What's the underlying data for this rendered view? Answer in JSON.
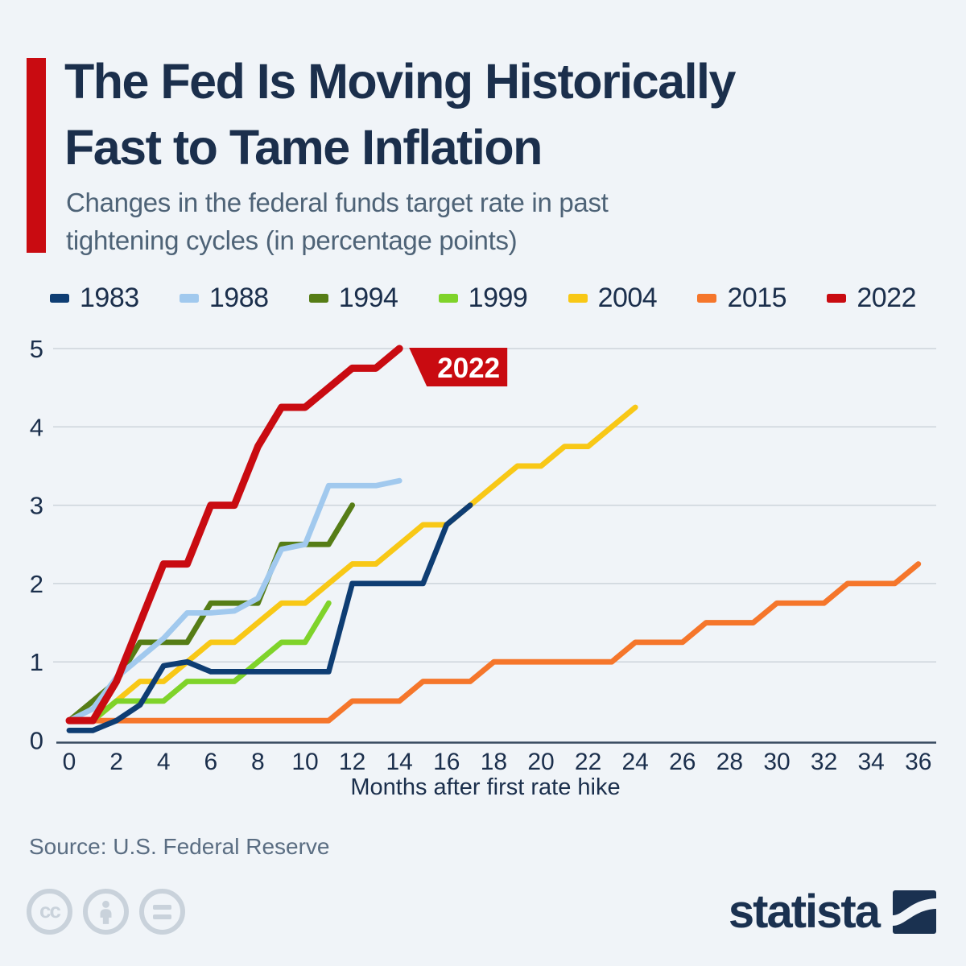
{
  "header": {
    "title": "The Fed Is Moving Historically\nFast to Tame Inflation",
    "subtitle": "Changes in the federal funds target rate in past\ntightening cycles (in percentage points)"
  },
  "chart_data": {
    "type": "line",
    "title": "Changes in the federal funds target rate in past tightening cycles (in percentage points)",
    "xlabel": "Months after first rate hike",
    "ylabel": "",
    "xlim": [
      0,
      36
    ],
    "ylim": [
      0,
      5
    ],
    "x_ticks": [
      0,
      2,
      4,
      6,
      8,
      10,
      12,
      14,
      16,
      18,
      20,
      22,
      24,
      26,
      28,
      30,
      32,
      34,
      36
    ],
    "y_ticks": [
      0,
      1,
      2,
      3,
      4,
      5
    ],
    "grid": "horizontal",
    "legend_position": "top",
    "annotation": {
      "label": "2022",
      "x": 14,
      "y": 5,
      "color": "#c90b11",
      "text_color": "#ffffff"
    },
    "series": [
      {
        "name": "1983",
        "color": "#0e3d73",
        "line_width": 6.8,
        "points": [
          [
            0,
            0.125
          ],
          [
            1,
            0.125
          ],
          [
            2,
            0.25
          ],
          [
            3,
            0.45
          ],
          [
            4,
            0.95
          ],
          [
            5,
            1.0
          ],
          [
            6,
            0.875
          ],
          [
            7,
            0.875
          ],
          [
            8,
            0.875
          ],
          [
            9,
            0.875
          ],
          [
            10,
            0.875
          ],
          [
            11,
            0.875
          ],
          [
            12,
            2.0
          ],
          [
            13,
            2.0
          ],
          [
            14,
            2.0
          ],
          [
            15,
            2.0
          ],
          [
            16,
            2.75
          ],
          [
            17,
            3.0
          ]
        ]
      },
      {
        "name": "1988",
        "color": "#a1c9ee",
        "line_width": 6.8,
        "points": [
          [
            0,
            0.25
          ],
          [
            1,
            0.4
          ],
          [
            2,
            0.8
          ],
          [
            3,
            1.05
          ],
          [
            4,
            1.3
          ],
          [
            5,
            1.625
          ],
          [
            6,
            1.625
          ],
          [
            7,
            1.65
          ],
          [
            8,
            1.8125
          ],
          [
            9,
            2.4375
          ],
          [
            10,
            2.5
          ],
          [
            11,
            3.25
          ],
          [
            12,
            3.25
          ],
          [
            13,
            3.25
          ],
          [
            14,
            3.3125
          ]
        ]
      },
      {
        "name": "1994",
        "color": "#567d16",
        "line_width": 6.8,
        "points": [
          [
            0,
            0.25
          ],
          [
            1,
            0.5
          ],
          [
            2,
            0.75
          ],
          [
            3,
            1.25
          ],
          [
            4,
            1.25
          ],
          [
            5,
            1.25
          ],
          [
            6,
            1.75
          ],
          [
            7,
            1.75
          ],
          [
            8,
            1.75
          ],
          [
            9,
            2.5
          ],
          [
            10,
            2.5
          ],
          [
            11,
            2.5
          ],
          [
            12,
            3.0
          ]
        ]
      },
      {
        "name": "1999",
        "color": "#7fd32a",
        "line_width": 6.8,
        "points": [
          [
            0,
            0.25
          ],
          [
            1,
            0.25
          ],
          [
            2,
            0.5
          ],
          [
            3,
            0.5
          ],
          [
            4,
            0.5
          ],
          [
            5,
            0.75
          ],
          [
            6,
            0.75
          ],
          [
            7,
            0.75
          ],
          [
            8,
            1.0
          ],
          [
            9,
            1.25
          ],
          [
            10,
            1.25
          ],
          [
            11,
            1.75
          ]
        ]
      },
      {
        "name": "2004",
        "color": "#f8c816",
        "line_width": 6.8,
        "points": [
          [
            0,
            0.25
          ],
          [
            1,
            0.25
          ],
          [
            2,
            0.5
          ],
          [
            3,
            0.75
          ],
          [
            4,
            0.75
          ],
          [
            5,
            1.0
          ],
          [
            6,
            1.25
          ],
          [
            7,
            1.25
          ],
          [
            8,
            1.5
          ],
          [
            9,
            1.75
          ],
          [
            10,
            1.75
          ],
          [
            11,
            2.0
          ],
          [
            12,
            2.25
          ],
          [
            13,
            2.25
          ],
          [
            14,
            2.5
          ],
          [
            15,
            2.75
          ],
          [
            16,
            2.75
          ],
          [
            17,
            3.0
          ],
          [
            18,
            3.25
          ],
          [
            19,
            3.5
          ],
          [
            20,
            3.5
          ],
          [
            21,
            3.75
          ],
          [
            22,
            3.75
          ],
          [
            23,
            4.0
          ],
          [
            24,
            4.25
          ]
        ]
      },
      {
        "name": "2015",
        "color": "#f5762b",
        "line_width": 6.8,
        "points": [
          [
            0,
            0.25
          ],
          [
            1,
            0.25
          ],
          [
            2,
            0.25
          ],
          [
            3,
            0.25
          ],
          [
            4,
            0.25
          ],
          [
            5,
            0.25
          ],
          [
            6,
            0.25
          ],
          [
            7,
            0.25
          ],
          [
            8,
            0.25
          ],
          [
            9,
            0.25
          ],
          [
            10,
            0.25
          ],
          [
            11,
            0.25
          ],
          [
            12,
            0.5
          ],
          [
            13,
            0.5
          ],
          [
            14,
            0.5
          ],
          [
            15,
            0.75
          ],
          [
            16,
            0.75
          ],
          [
            17,
            0.75
          ],
          [
            18,
            1.0
          ],
          [
            19,
            1.0
          ],
          [
            20,
            1.0
          ],
          [
            21,
            1.0
          ],
          [
            22,
            1.0
          ],
          [
            23,
            1.0
          ],
          [
            24,
            1.25
          ],
          [
            25,
            1.25
          ],
          [
            26,
            1.25
          ],
          [
            27,
            1.5
          ],
          [
            28,
            1.5
          ],
          [
            29,
            1.5
          ],
          [
            30,
            1.75
          ],
          [
            31,
            1.75
          ],
          [
            32,
            1.75
          ],
          [
            33,
            2.0
          ],
          [
            34,
            2.0
          ],
          [
            35,
            2.0
          ],
          [
            36,
            2.25
          ]
        ]
      },
      {
        "name": "2022",
        "color": "#c90b11",
        "line_width": 9,
        "points": [
          [
            0,
            0.25
          ],
          [
            1,
            0.25
          ],
          [
            2,
            0.75
          ],
          [
            3,
            1.5
          ],
          [
            4,
            2.25
          ],
          [
            5,
            2.25
          ],
          [
            6,
            3.0
          ],
          [
            7,
            3.0
          ],
          [
            8,
            3.75
          ],
          [
            9,
            4.25
          ],
          [
            10,
            4.25
          ],
          [
            11,
            4.5
          ],
          [
            12,
            4.75
          ],
          [
            13,
            4.75
          ],
          [
            14,
            5.0
          ]
        ]
      }
    ],
    "draw_order": [
      "2015",
      "2004",
      "1999",
      "1994",
      "1988",
      "1983",
      "2022"
    ]
  },
  "footer": {
    "source": "Source: U.S. Federal Reserve",
    "logo_text": "statista"
  }
}
